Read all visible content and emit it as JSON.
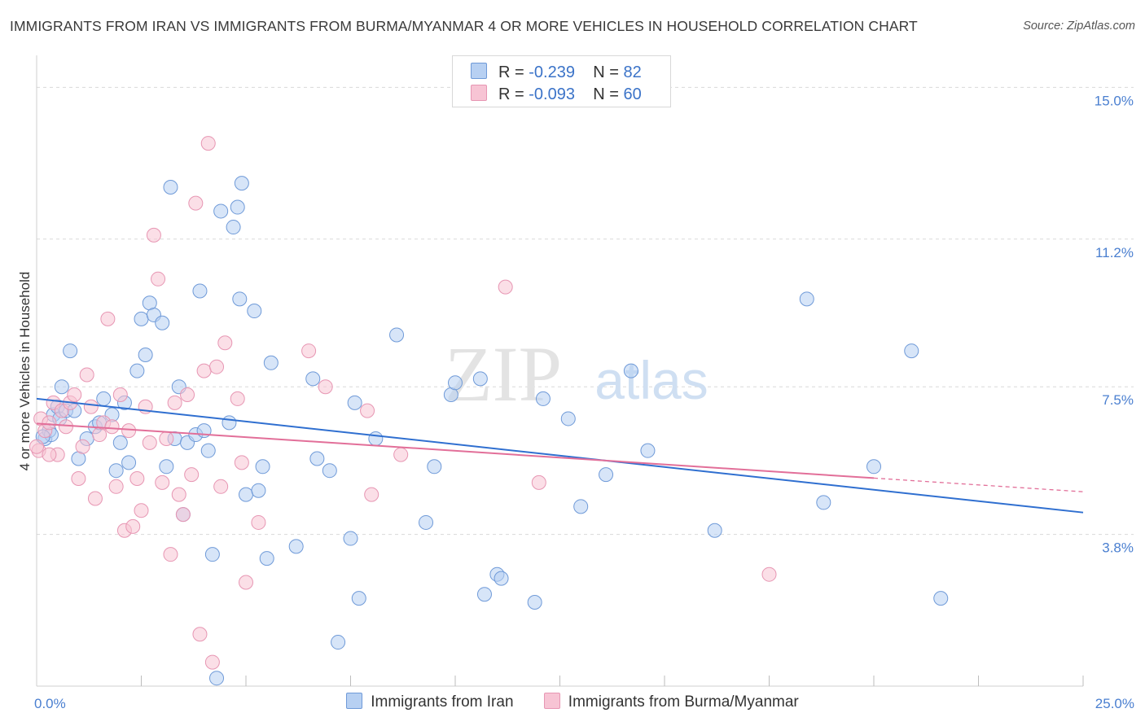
{
  "header": {
    "title": "IMMIGRANTS FROM IRAN VS IMMIGRANTS FROM BURMA/MYANMAR 4 OR MORE VEHICLES IN HOUSEHOLD CORRELATION CHART",
    "source": "Source: ZipAtlas.com"
  },
  "watermark": {
    "zip": "ZIP",
    "atlas": "atlas"
  },
  "legend": {
    "r_label": "R =",
    "n_label": "N =",
    "series": [
      {
        "r": "-0.239",
        "n": "82"
      },
      {
        "r": "-0.093",
        "n": "60"
      }
    ]
  },
  "colors": {
    "iran_fill": "#b7d0f2",
    "iran_stroke": "#6f9ad8",
    "iran_line": "#2f6fd0",
    "burma_fill": "#f7c4d4",
    "burma_stroke": "#e796b3",
    "burma_line": "#e26f99",
    "tick_label": "#4a7fd0",
    "grid": "#d9d9d9"
  },
  "chart_data": {
    "type": "scatter",
    "title": "IMMIGRANTS FROM IRAN VS IMMIGRANTS FROM BURMA/MYANMAR 4 OR MORE VEHICLES IN HOUSEHOLD CORRELATION CHART",
    "xlabel": "",
    "ylabel": "4 or more Vehicles in Household",
    "xlim": [
      0,
      25
    ],
    "ylim": [
      0,
      15.6
    ],
    "x_tick_labels": [
      {
        "value": 0,
        "label": "0.0%"
      },
      {
        "value": 25,
        "label": "25.0%"
      }
    ],
    "y_ticks": [
      {
        "value": 3.8,
        "label": "3.8%"
      },
      {
        "value": 7.5,
        "label": "7.5%"
      },
      {
        "value": 11.2,
        "label": "11.2%"
      },
      {
        "value": 15.0,
        "label": "15.0%"
      }
    ],
    "x_minor_ticks": [
      2.5,
      5,
      7.5,
      10,
      12.5,
      15,
      17.5,
      20,
      22.5,
      25
    ],
    "grid": true,
    "legend_position": "top-center",
    "series": [
      {
        "name": "Immigrants from Iran",
        "r": -0.239,
        "n": 82,
        "trend": {
          "x": [
            0,
            25
          ],
          "y": [
            7.2,
            4.35
          ],
          "solid_until": 25
        },
        "points": [
          [
            0.2,
            6.2
          ],
          [
            0.3,
            6.4
          ],
          [
            0.35,
            6.3
          ],
          [
            0.4,
            6.8
          ],
          [
            0.5,
            7.0
          ],
          [
            0.55,
            6.7
          ],
          [
            0.6,
            7.5
          ],
          [
            0.7,
            6.9
          ],
          [
            0.8,
            8.4
          ],
          [
            0.9,
            6.9
          ],
          [
            1.0,
            5.7
          ],
          [
            1.2,
            6.2
          ],
          [
            1.4,
            6.5
          ],
          [
            1.5,
            6.6
          ],
          [
            1.6,
            7.2
          ],
          [
            1.8,
            6.8
          ],
          [
            1.9,
            5.4
          ],
          [
            2.0,
            6.1
          ],
          [
            2.1,
            7.1
          ],
          [
            2.2,
            5.6
          ],
          [
            2.4,
            7.9
          ],
          [
            2.5,
            9.2
          ],
          [
            2.6,
            8.3
          ],
          [
            2.7,
            9.6
          ],
          [
            2.8,
            9.3
          ],
          [
            3.0,
            9.1
          ],
          [
            3.1,
            5.5
          ],
          [
            3.2,
            12.5
          ],
          [
            3.3,
            6.2
          ],
          [
            3.4,
            7.5
          ],
          [
            3.5,
            4.3
          ],
          [
            3.6,
            6.1
          ],
          [
            3.8,
            6.3
          ],
          [
            3.9,
            9.9
          ],
          [
            4.0,
            6.4
          ],
          [
            4.1,
            5.9
          ],
          [
            4.2,
            3.3
          ],
          [
            4.3,
            0.2
          ],
          [
            4.4,
            11.9
          ],
          [
            4.6,
            6.6
          ],
          [
            4.7,
            11.5
          ],
          [
            4.8,
            12.0
          ],
          [
            4.85,
            9.7
          ],
          [
            4.9,
            12.6
          ],
          [
            5.0,
            4.8
          ],
          [
            5.2,
            9.4
          ],
          [
            5.3,
            4.9
          ],
          [
            5.4,
            5.5
          ],
          [
            5.5,
            3.2
          ],
          [
            5.6,
            8.1
          ],
          [
            6.2,
            3.5
          ],
          [
            6.6,
            7.7
          ],
          [
            6.7,
            5.7
          ],
          [
            7.0,
            5.4
          ],
          [
            7.2,
            1.1
          ],
          [
            7.5,
            3.7
          ],
          [
            7.6,
            7.1
          ],
          [
            7.7,
            2.2
          ],
          [
            8.1,
            6.2
          ],
          [
            8.6,
            8.8
          ],
          [
            9.3,
            4.1
          ],
          [
            9.5,
            5.5
          ],
          [
            9.9,
            7.3
          ],
          [
            10.0,
            7.6
          ],
          [
            10.6,
            7.7
          ],
          [
            10.7,
            2.3
          ],
          [
            11.0,
            2.8
          ],
          [
            11.1,
            2.7
          ],
          [
            11.9,
            2.1
          ],
          [
            12.1,
            7.2
          ],
          [
            12.7,
            6.7
          ],
          [
            13.0,
            4.5
          ],
          [
            13.6,
            5.3
          ],
          [
            14.2,
            7.9
          ],
          [
            14.6,
            5.9
          ],
          [
            16.2,
            3.9
          ],
          [
            18.4,
            9.7
          ],
          [
            18.8,
            4.6
          ],
          [
            20.0,
            5.5
          ],
          [
            20.9,
            8.4
          ],
          [
            21.6,
            2.2
          ],
          [
            0.15,
            6.25
          ]
        ]
      },
      {
        "name": "Immigrants from Burma/Myanmar",
        "r": -0.093,
        "n": 60,
        "trend": {
          "x": [
            0,
            25
          ],
          "y": [
            6.58,
            4.87
          ],
          "solid_until": 20.0
        },
        "points": [
          [
            0.05,
            5.9
          ],
          [
            0.1,
            6.7
          ],
          [
            0.2,
            6.4
          ],
          [
            0.3,
            6.6
          ],
          [
            0.4,
            7.1
          ],
          [
            0.5,
            5.8
          ],
          [
            0.6,
            6.9
          ],
          [
            0.7,
            6.5
          ],
          [
            0.8,
            7.1
          ],
          [
            0.9,
            7.3
          ],
          [
            1.0,
            5.2
          ],
          [
            1.1,
            6.0
          ],
          [
            1.2,
            7.8
          ],
          [
            1.3,
            7.0
          ],
          [
            1.4,
            4.7
          ],
          [
            1.5,
            6.3
          ],
          [
            1.6,
            6.6
          ],
          [
            1.7,
            9.2
          ],
          [
            1.8,
            6.5
          ],
          [
            1.9,
            5.0
          ],
          [
            2.0,
            7.3
          ],
          [
            2.1,
            3.9
          ],
          [
            2.2,
            6.4
          ],
          [
            2.3,
            4.0
          ],
          [
            2.4,
            5.2
          ],
          [
            2.5,
            4.4
          ],
          [
            2.6,
            7.0
          ],
          [
            2.7,
            6.1
          ],
          [
            2.8,
            11.3
          ],
          [
            2.9,
            10.2
          ],
          [
            3.0,
            5.1
          ],
          [
            3.1,
            6.2
          ],
          [
            3.2,
            3.3
          ],
          [
            3.3,
            7.1
          ],
          [
            3.4,
            4.8
          ],
          [
            3.5,
            4.3
          ],
          [
            3.6,
            7.3
          ],
          [
            3.7,
            5.3
          ],
          [
            3.8,
            12.1
          ],
          [
            3.9,
            1.3
          ],
          [
            4.0,
            7.9
          ],
          [
            4.1,
            13.6
          ],
          [
            4.2,
            0.6
          ],
          [
            4.3,
            8.0
          ],
          [
            4.4,
            5.0
          ],
          [
            4.5,
            8.6
          ],
          [
            4.8,
            7.2
          ],
          [
            4.9,
            5.6
          ],
          [
            5.0,
            2.6
          ],
          [
            5.3,
            4.1
          ],
          [
            6.5,
            8.4
          ],
          [
            6.9,
            7.5
          ],
          [
            7.9,
            6.9
          ],
          [
            8.0,
            4.8
          ],
          [
            8.7,
            5.8
          ],
          [
            11.2,
            10.0
          ],
          [
            12.0,
            5.1
          ],
          [
            17.5,
            2.8
          ],
          [
            0.0,
            6.0
          ],
          [
            0.3,
            5.8
          ]
        ]
      }
    ]
  }
}
